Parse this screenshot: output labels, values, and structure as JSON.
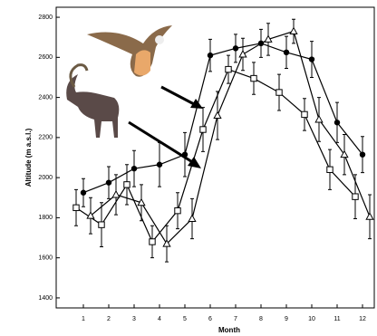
{
  "chart_data": {
    "type": "line",
    "x_label": "Month",
    "y_label": "Altitude (m a.s.l.)",
    "categories": [
      "1",
      "2",
      "3",
      "4",
      "5",
      "6",
      "7",
      "8",
      "9",
      "10",
      "11",
      "12"
    ],
    "ylim": [
      1350,
      2850
    ],
    "yticks": [
      1400,
      1600,
      1800,
      2000,
      2200,
      2400,
      2600,
      2800
    ],
    "series": [
      {
        "marker": "circle-filled",
        "color": "#000000",
        "values": [
          1925,
          1975,
          2045,
          2065,
          2115,
          2610,
          2645,
          2670,
          2625,
          2590,
          2275,
          2115
        ],
        "errors": [
          70,
          80,
          90,
          110,
          110,
          80,
          70,
          70,
          80,
          90,
          100,
          90
        ]
      },
      {
        "marker": "square-open",
        "color": "#000000",
        "values": [
          1850,
          1765,
          1965,
          1680,
          1835,
          2240,
          2540,
          2495,
          2425,
          2315,
          2040,
          1905
        ],
        "errors": [
          90,
          110,
          100,
          80,
          90,
          110,
          70,
          80,
          90,
          80,
          100,
          110
        ]
      },
      {
        "marker": "triangle-open",
        "color": "#000000",
        "values": [
          1810,
          1915,
          1875,
          1670,
          1795,
          2310,
          2615,
          2690,
          2730,
          2290,
          2115,
          1805
        ],
        "errors": [
          90,
          100,
          90,
          90,
          100,
          120,
          80,
          80,
          60,
          110,
          100,
          110
        ]
      }
    ]
  }
}
